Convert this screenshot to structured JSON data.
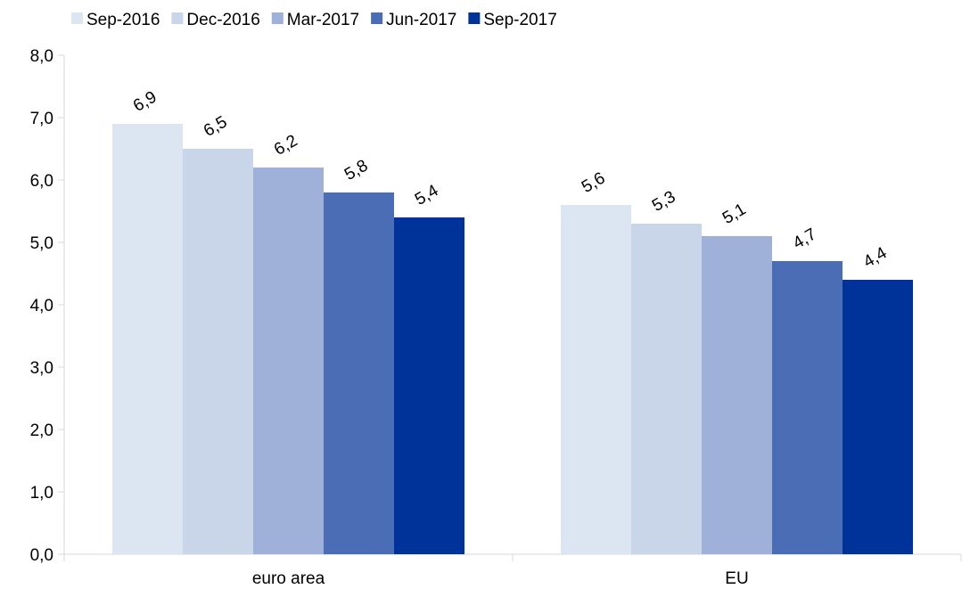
{
  "chart_data": {
    "type": "bar",
    "title": "",
    "xlabel": "",
    "ylabel": "",
    "categories": [
      "euro area",
      "EU"
    ],
    "series": [
      {
        "name": "Sep-2016",
        "color": "#dce6f2",
        "values": [
          6.9,
          5.6
        ],
        "labels": [
          "6,9",
          "5,6"
        ]
      },
      {
        "name": "Dec-2016",
        "color": "#c9d6e9",
        "values": [
          6.5,
          5.3
        ],
        "labels": [
          "6,5",
          "5,3"
        ]
      },
      {
        "name": "Mar-2017",
        "color": "#9fb1d8",
        "values": [
          6.2,
          5.1
        ],
        "labels": [
          "6,2",
          "5,1"
        ]
      },
      {
        "name": "Jun-2017",
        "color": "#4a6db5",
        "values": [
          5.8,
          4.7
        ],
        "labels": [
          "5,8",
          "4,7"
        ]
      },
      {
        "name": "Sep-2017",
        "color": "#003399",
        "values": [
          5.4,
          4.4
        ],
        "labels": [
          "5,4",
          "4,4"
        ]
      }
    ],
    "ylim": [
      0,
      8
    ],
    "yticks": [
      0,
      1,
      2,
      3,
      4,
      5,
      6,
      7,
      8
    ],
    "ytick_labels": [
      "0,0",
      "1,0",
      "2,0",
      "3,0",
      "4,0",
      "5,0",
      "6,0",
      "7,0",
      "8,0"
    ],
    "grid": false,
    "legend_position": "top"
  }
}
